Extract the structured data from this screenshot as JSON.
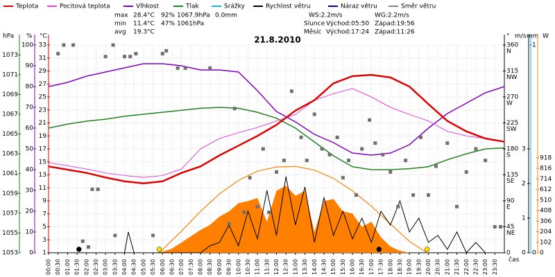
{
  "chart_data": {
    "type": "line",
    "title": "21.8.2010",
    "legend": [
      {
        "name": "Teplota",
        "color": "#e00000"
      },
      {
        "name": "Pocitová teplota",
        "color": "#e040e0"
      },
      {
        "name": "Vlhkost",
        "color": "#8000c0"
      },
      {
        "name": "Tlak",
        "color": "#208020"
      },
      {
        "name": "Srážky",
        "color": "#20b0e0"
      },
      {
        "name": "Rychlost větru",
        "color": "#000000"
      },
      {
        "name": "Náraz větru",
        "color": "#000080"
      },
      {
        "name": "Směr větru",
        "color": "#808080"
      }
    ],
    "stats": [
      {
        "label": "max",
        "values": [
          "28.4°C",
          "92%",
          "1067.9hPa",
          "0.0mm"
        ]
      },
      {
        "label": "min",
        "values": [
          "11.4°C",
          "47%",
          "1061hPa"
        ]
      },
      {
        "label": "avg",
        "values": [
          "19.3°C"
        ]
      }
    ],
    "stat_colors": [
      "#e00000",
      "#8000c0",
      "#208020",
      "#20b0e0"
    ],
    "wind_info": [
      "WS:2.2m/s",
      "WG:2.2m/s"
    ],
    "sun": {
      "label": "Slunce",
      "rise": "Východ:05:50",
      "set": "Západ:19:56"
    },
    "moon": {
      "label": "Měsíc",
      "rise": "Východ:17:24",
      "set": "Západ:11:26"
    },
    "x_label": "čas",
    "xlim": [
      0,
      24
    ],
    "xticks": [
      {
        "value": 0,
        "label": "00:00"
      },
      {
        "value": 0.5,
        "label": "00:30"
      },
      {
        "value": 1,
        "label": "01:00"
      },
      {
        "value": 1.5,
        "label": "01:30"
      },
      {
        "value": 2,
        "label": "02:00"
      },
      {
        "value": 2.5,
        "label": "02:30"
      },
      {
        "value": 3,
        "label": "03:00"
      },
      {
        "value": 3.5,
        "label": "03:30"
      },
      {
        "value": 4,
        "label": "04:00"
      },
      {
        "value": 4.5,
        "label": "04:30"
      },
      {
        "value": 5,
        "label": "05:00"
      },
      {
        "value": 5.5,
        "label": "05:30"
      },
      {
        "value": 6,
        "label": "06:00"
      },
      {
        "value": 6.5,
        "label": "06:30"
      },
      {
        "value": 7,
        "label": "07:00"
      },
      {
        "value": 7.5,
        "label": "07:30"
      },
      {
        "value": 8,
        "label": "08:00"
      },
      {
        "value": 8.5,
        "label": "08:30"
      },
      {
        "value": 9,
        "label": "09:00"
      },
      {
        "value": 9.5,
        "label": "09:30"
      },
      {
        "value": 10,
        "label": "10:00"
      },
      {
        "value": 10.5,
        "label": "10:30"
      },
      {
        "value": 11,
        "label": "11:00"
      },
      {
        "value": 11.5,
        "label": "11:30"
      },
      {
        "value": 12,
        "label": "12:00"
      },
      {
        "value": 12.5,
        "label": "12:30"
      },
      {
        "value": 13,
        "label": "13:00"
      },
      {
        "value": 13.5,
        "label": "13:30"
      },
      {
        "value": 14,
        "label": "14:00"
      },
      {
        "value": 14.5,
        "label": "14:30"
      },
      {
        "value": 15,
        "label": "15:00"
      },
      {
        "value": 15.5,
        "label": "15:30"
      },
      {
        "value": 16,
        "label": "16:00"
      },
      {
        "value": 16.5,
        "label": "16:30"
      },
      {
        "value": 17,
        "label": "17:00"
      },
      {
        "value": 17.5,
        "label": "17:30"
      },
      {
        "value": 18,
        "label": "18:00"
      },
      {
        "value": 18.5,
        "label": "18:30"
      },
      {
        "value": 19,
        "label": "19:00"
      },
      {
        "value": 19.5,
        "label": "19:30"
      },
      {
        "value": 20,
        "label": "20:00"
      },
      {
        "value": 20.5,
        "label": "20:30"
      },
      {
        "value": 21,
        "label": "21:00"
      },
      {
        "value": 21.5,
        "label": "21:30"
      },
      {
        "value": 22,
        "label": "22:00"
      },
      {
        "value": 22.5,
        "label": "22:30"
      },
      {
        "value": 23,
        "label": "23:00"
      },
      {
        "value": 23.5,
        "label": "23:30"
      }
    ],
    "axes": {
      "press": {
        "name": "hPa",
        "color": "#208020",
        "lim": [
          1053,
          1074
        ],
        "ticks": [
          1053,
          1055,
          1057,
          1059,
          1061,
          1063,
          1065,
          1067,
          1069,
          1071,
          1073
        ]
      },
      "hum": {
        "name": "%",
        "color": "#8000c0",
        "lim": [
          0,
          100
        ],
        "ticks": [
          0,
          10,
          20,
          30,
          40,
          50,
          60,
          70,
          80,
          90,
          100
        ]
      },
      "temp": {
        "name": "°C",
        "color": "#e00000",
        "lim": [
          1,
          33
        ],
        "ticks": [
          1,
          3,
          5,
          7,
          9,
          11,
          13,
          15,
          17,
          19,
          21,
          23,
          25,
          27,
          29,
          31,
          33
        ]
      },
      "dir": {
        "name": "°",
        "color": "#000000",
        "lim": [
          0,
          360
        ],
        "ticks": [
          {
            "value": 0,
            "label": "0"
          },
          {
            "value": 45,
            "label": "45",
            "compass": "NE"
          },
          {
            "value": 90,
            "label": "90",
            "compass": "E"
          },
          {
            "value": 135,
            "label": "135",
            "compass": "SE"
          },
          {
            "value": 180,
            "label": "180",
            "compass": "S"
          },
          {
            "value": 225,
            "label": "225",
            "compass": "SW"
          },
          {
            "value": 270,
            "label": "270",
            "compass": "W"
          },
          {
            "value": 315,
            "label": "315",
            "compass": "NW"
          },
          {
            "value": 360,
            "label": "360",
            "compass": "N"
          }
        ]
      },
      "wind": {
        "name": "m/s",
        "color": "#000000",
        "lim": [
          0,
          6
        ],
        "ticks": [
          0,
          1,
          2,
          3
        ]
      },
      "rain": {
        "name": "mm",
        "color": "#20b0e0",
        "lim": [
          0,
          1
        ],
        "ticks": [
          0,
          1
        ]
      },
      "rad": {
        "name": "W",
        "color": "#ff8000",
        "lim": [
          0,
          2010
        ],
        "ticks": [
          0,
          102,
          204,
          306,
          408,
          510,
          612,
          714,
          816,
          918
        ]
      }
    },
    "series": [
      {
        "kind": "area",
        "axis": "rad",
        "color": "#ff8000",
        "x": [
          5.5,
          6,
          6.5,
          7,
          7.5,
          8,
          8.5,
          9,
          9.5,
          10,
          10.5,
          11,
          11.5,
          12,
          12.5,
          13,
          13.5,
          14,
          14.5,
          15,
          15.5,
          16,
          16.5,
          17,
          17.5,
          18,
          18.5,
          19
        ],
        "values": [
          0,
          10,
          40,
          100,
          160,
          220,
          270,
          350,
          400,
          480,
          500,
          530,
          300,
          600,
          650,
          550,
          600,
          200,
          500,
          520,
          400,
          380,
          250,
          300,
          150,
          60,
          20,
          0
        ]
      },
      {
        "kind": "line",
        "axis": "rad",
        "color": "#ff8000",
        "width": 1.2,
        "x": [
          5.83,
          7,
          8,
          9,
          10,
          11,
          12,
          13,
          14,
          15,
          16,
          17,
          18,
          19,
          19.93
        ],
        "values": [
          0,
          210,
          400,
          570,
          700,
          790,
          830,
          836,
          800,
          720,
          600,
          450,
          280,
          110,
          0
        ]
      },
      {
        "kind": "line",
        "axis": "wind",
        "color": "#000000",
        "width": 1,
        "x": [
          0,
          1,
          2,
          3,
          4,
          4.2,
          4.5,
          5,
          6,
          7,
          8,
          8.5,
          9,
          9.5,
          10,
          10.5,
          11,
          11.5,
          12,
          12.5,
          13,
          13.5,
          14,
          14.5,
          15,
          15.5,
          16,
          16.5,
          17,
          17.5,
          18,
          18.5,
          19,
          19.5,
          20,
          20.5,
          21,
          21.5,
          22,
          22.5,
          23,
          23.5,
          24
        ],
        "values": [
          0,
          0,
          0,
          0,
          0,
          0.6,
          0,
          0,
          0,
          0,
          0,
          0.2,
          0.3,
          0.8,
          0.2,
          1.2,
          0.4,
          1.8,
          0.5,
          2.2,
          0.8,
          1.9,
          0.3,
          1.6,
          0.5,
          1.2,
          0.4,
          1.0,
          0.3,
          1.2,
          0.8,
          1.5,
          0.6,
          1.0,
          0.3,
          0.5,
          0.1,
          0.6,
          0,
          0.3,
          0,
          0,
          0
        ]
      },
      {
        "kind": "line",
        "axis": "press",
        "color": "#208020",
        "width": 1.5,
        "x": [
          0,
          1,
          2,
          3,
          4,
          5,
          6,
          7,
          8,
          9,
          10,
          11,
          12,
          13,
          14,
          15,
          16,
          17,
          18,
          19,
          20,
          21,
          22,
          23,
          24
        ],
        "values": [
          1065.6,
          1066,
          1066.3,
          1066.5,
          1066.8,
          1067,
          1067.2,
          1067.4,
          1067.6,
          1067.7,
          1067.6,
          1067.2,
          1066.6,
          1065.6,
          1064.2,
          1062.8,
          1061.7,
          1061.4,
          1061.4,
          1061.5,
          1061.7,
          1062.4,
          1063,
          1063.5,
          1063.6
        ]
      },
      {
        "kind": "line",
        "axis": "hum",
        "color": "#8000c0",
        "width": 1.5,
        "x": [
          0,
          1,
          2,
          3,
          4,
          5,
          6,
          7,
          8,
          9,
          10,
          11,
          12,
          13,
          14,
          15,
          16,
          17,
          18,
          19,
          20,
          21,
          22,
          23,
          24
        ],
        "values": [
          80,
          82,
          85,
          87,
          89,
          91,
          91,
          90,
          88,
          88,
          87,
          78,
          68,
          63,
          57,
          53,
          48,
          47,
          48,
          52,
          60,
          67,
          72,
          77,
          80
        ]
      },
      {
        "kind": "line",
        "axis": "temp",
        "color": "#e040e0",
        "width": 1,
        "x": [
          0,
          1,
          2,
          3,
          4,
          5,
          6,
          7,
          8,
          9,
          10,
          11,
          12,
          13,
          14,
          15,
          16,
          17,
          18,
          19,
          20,
          21,
          22,
          23,
          24
        ],
        "values": [
          14.9,
          14.4,
          13.9,
          13.3,
          12.9,
          12.6,
          12.9,
          13.9,
          17,
          18.6,
          19.5,
          20.3,
          21.3,
          22.3,
          24.5,
          25.5,
          26.3,
          25,
          23.4,
          22.3,
          21.3,
          19.7,
          19,
          18.6,
          18.1
        ]
      },
      {
        "kind": "line",
        "axis": "temp",
        "color": "#e00000",
        "width": 2.5,
        "x": [
          0,
          1,
          2,
          3,
          4,
          5,
          6,
          7,
          8,
          9,
          10,
          11,
          12,
          13,
          14,
          15,
          16,
          17,
          18,
          19,
          20,
          21,
          22,
          23,
          24
        ],
        "values": [
          14.3,
          13.8,
          13.3,
          12.6,
          12,
          11.7,
          12,
          13.3,
          14.3,
          16,
          17.5,
          19,
          20.7,
          22.9,
          24.5,
          27.1,
          28.2,
          28.4,
          28,
          26.6,
          23.9,
          21.3,
          19.7,
          18.6,
          18.1
        ]
      },
      {
        "kind": "scatter",
        "axis": "dir",
        "color": "#707070",
        "x": [
          0.5,
          0.8,
          1.3,
          1.8,
          2.1,
          2.3,
          2.6,
          3,
          3.4,
          3.5,
          4,
          4.3,
          4.6,
          5.5,
          6,
          6.2,
          6.8,
          7.2,
          8.5,
          9.5,
          9.8,
          10.3,
          10.6,
          11,
          11.3,
          11.6,
          12,
          12.4,
          12.8,
          13.3,
          13.6,
          14,
          14.4,
          14.8,
          15.2,
          15.5,
          15.8,
          16.2,
          16.5,
          16.9,
          17.2,
          17.6,
          18,
          18.4,
          18.8,
          19.2,
          19.6,
          20,
          20.4,
          21,
          21.5,
          22,
          22.5,
          23,
          23.5,
          23.8
        ],
        "values": [
          345,
          360,
          360,
          20,
          10,
          110,
          110,
          340,
          360,
          30,
          340,
          340,
          345,
          30,
          345,
          350,
          320,
          320,
          320,
          50,
          250,
          70,
          130,
          80,
          180,
          70,
          140,
          160,
          280,
          200,
          160,
          240,
          180,
          170,
          200,
          130,
          160,
          100,
          180,
          230,
          190,
          170,
          140,
          80,
          160,
          100,
          200,
          100,
          150,
          190,
          80,
          140,
          180,
          160,
          45,
          45
        ]
      }
    ],
    "markers": [
      {
        "x": 1.6,
        "color": "#000000"
      },
      {
        "x": 5.83,
        "color": "#ffe000"
      },
      {
        "x": 17.4,
        "color": "#000000"
      },
      {
        "x": 19.93,
        "color": "#ffe000"
      }
    ],
    "grid": true
  }
}
